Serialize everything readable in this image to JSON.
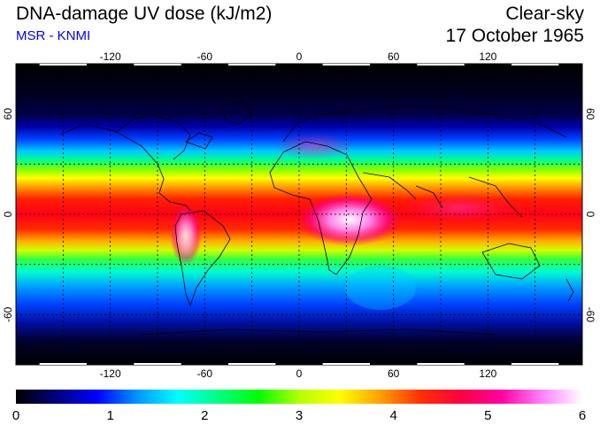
{
  "header": {
    "title": "DNA-damage UV dose (kJ/m2)",
    "source": "MSR - KNMI",
    "condition": "Clear-sky",
    "date": "17 October 1965"
  },
  "map": {
    "lon_ticks": [
      "-120",
      "-60",
      "0",
      "60",
      "120"
    ],
    "lon_values": [
      -120,
      -60,
      0,
      60,
      120
    ],
    "lat_ticks": [
      "60",
      "0",
      "-60"
    ],
    "lat_values": [
      60,
      0,
      -60
    ],
    "lon_range": [
      -180,
      180
    ],
    "lat_range": [
      -90,
      90
    ],
    "gridlines": "dashed every 30 degrees"
  },
  "colorbar": {
    "ticks": [
      "0",
      "1",
      "2",
      "3",
      "4",
      "5",
      "6"
    ],
    "range": [
      0,
      6
    ],
    "colors": [
      "#000000",
      "#000080",
      "#0000ff",
      "#0096ff",
      "#00ffff",
      "#00ff80",
      "#00ff00",
      "#b4ff00",
      "#ffff00",
      "#ffa000",
      "#ff3000",
      "#ff0040",
      "#ff00a0",
      "#ff80ff",
      "#ffffff"
    ]
  }
}
